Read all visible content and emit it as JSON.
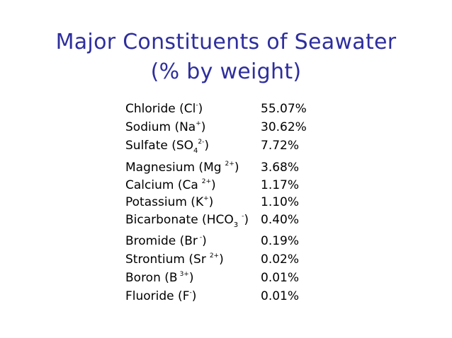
{
  "slide": {
    "title_line1": "Major Constituents of Seawater",
    "title_line2": "(% by weight)"
  },
  "constituents": [
    {
      "name": "Chloride",
      "symbol": "Cl",
      "charge": "-",
      "value": "55.07%"
    },
    {
      "name": "Sodium",
      "symbol": "Na",
      "charge": "+",
      "value": "30.62%"
    },
    {
      "name": "Sulfate",
      "symbol": "SO",
      "subscript": "4",
      "charge": "2-",
      "value": "7.72%"
    },
    {
      "name": "Magnesium",
      "symbol": "Mg",
      "charge": "2+",
      "value": "3.68%"
    },
    {
      "name": "Calcium",
      "symbol": "Ca",
      "charge": "2+",
      "value": "1.17%"
    },
    {
      "name": "Potassium",
      "symbol": "K",
      "charge": "+",
      "value": "1.10%"
    },
    {
      "name": "Bicarbonate",
      "symbol": "HCO",
      "subscript": "3",
      "charge": "-",
      "value": "0.40%"
    },
    {
      "name": "Bromide",
      "symbol": "Br",
      "charge": "-",
      "value": "0.19%"
    },
    {
      "name": "Strontium",
      "symbol": "Sr",
      "charge": "2+",
      "value": "0.02%"
    },
    {
      "name": "Boron",
      "symbol": "B",
      "charge": "3+",
      "value": "0.01%"
    },
    {
      "name": "Fluoride",
      "symbol": "F",
      "charge": "-",
      "value": "0.01%"
    }
  ]
}
